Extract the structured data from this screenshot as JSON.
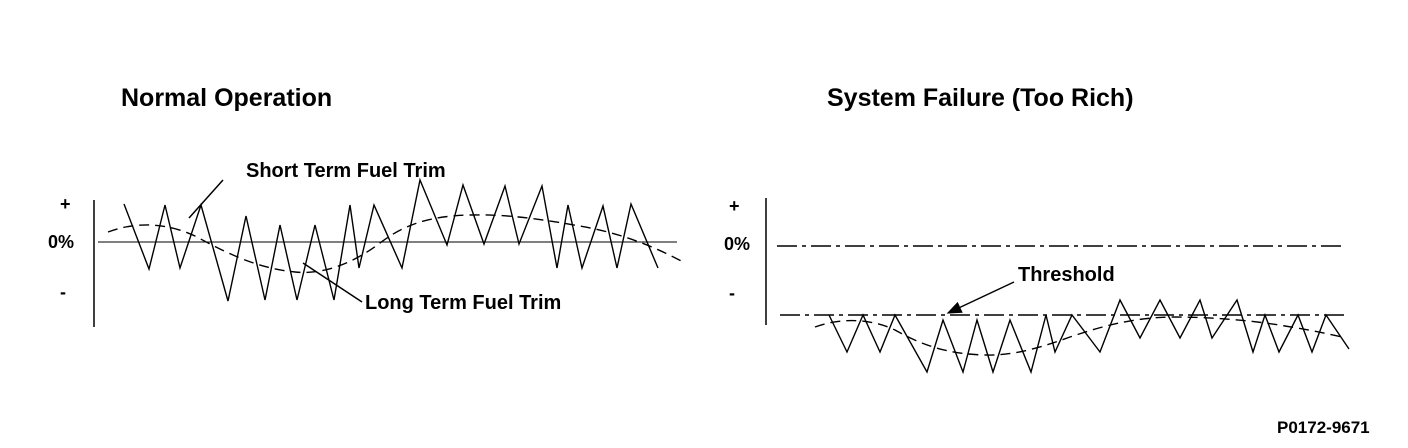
{
  "left_panel": {
    "title": "Normal Operation",
    "axis": {
      "plus": "+",
      "zero": "0%",
      "minus": "-"
    },
    "short_term_label": "Short Term Fuel Trim",
    "long_term_label": "Long Term Fuel Trim"
  },
  "right_panel": {
    "title": "System Failure (Too Rich)",
    "axis": {
      "plus": "+",
      "zero": "0%",
      "minus": "-"
    },
    "threshold_label": "Threshold"
  },
  "figure_code": "P0172-9671"
}
